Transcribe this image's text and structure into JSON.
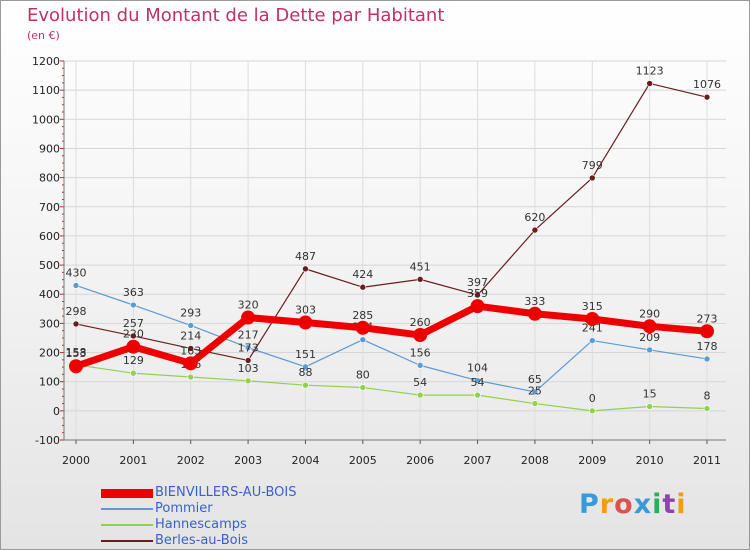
{
  "header": {
    "title": "Evolution du Montant de la Dette par Habitant",
    "unit": "(en €)"
  },
  "logo": {
    "text": "Proxiti",
    "colors": [
      "#3a9ad9",
      "#f39c12",
      "#d9534f",
      "#3a9ad9",
      "#27ae60",
      "#8e44ad",
      "#f39c12"
    ]
  },
  "chart_data": {
    "type": "line",
    "title": "Evolution du Montant de la Dette par Habitant",
    "ylabel": "(en €)",
    "xlabel": "",
    "categories": [
      "2000",
      "2001",
      "2002",
      "2003",
      "2004",
      "2005",
      "2006",
      "2007",
      "2008",
      "2009",
      "2010",
      "2011"
    ],
    "ylim": [
      -100,
      1200
    ],
    "yticks": [
      "-100",
      "0",
      "100",
      "200",
      "300",
      "400",
      "500",
      "600",
      "700",
      "800",
      "900",
      "1000",
      "1100",
      "1200"
    ],
    "grid": true,
    "legend_position": "bottom-left",
    "series": [
      {
        "name": "Pommier",
        "color": "#5b9bd5",
        "emphasis": false,
        "values": [
          430,
          363,
          293,
          217,
          151,
          244,
          156,
          104,
          65,
          241,
          209,
          178
        ]
      },
      {
        "name": "Hannescamps",
        "color": "#92d050",
        "emphasis": false,
        "values": [
          158,
          129,
          116,
          103,
          88,
          80,
          54,
          54,
          25,
          0,
          15,
          8
        ]
      },
      {
        "name": "Berles-au-Bois",
        "color": "#6b1c1c",
        "emphasis": false,
        "values": [
          298,
          257,
          214,
          173,
          487,
          424,
          451,
          397,
          620,
          799,
          1123,
          1076
        ]
      },
      {
        "name": "BIENVILLERS-AU-BOIS",
        "color": "#ee0000",
        "emphasis": true,
        "values": [
          153,
          220,
          163,
          320,
          303,
          285,
          260,
          359,
          333,
          315,
          290,
          273
        ]
      }
    ],
    "legend_order": [
      "BIENVILLERS-AU-BOIS",
      "Pommier",
      "Hannescamps",
      "Berles-au-Bois"
    ]
  }
}
